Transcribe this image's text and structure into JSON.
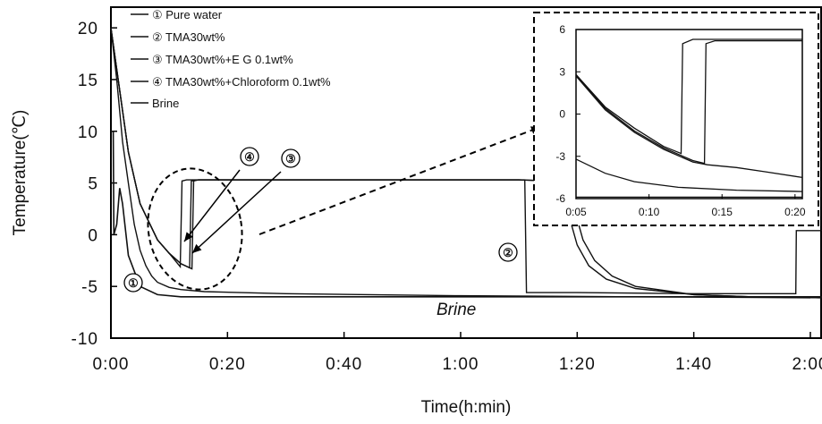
{
  "chart_data": [
    {
      "type": "line",
      "xlabel": "Time(h:min)",
      "ylabel": "Temperature(℃)",
      "xlim": [
        0,
        122
      ],
      "ylim": [
        -10,
        22
      ],
      "x_ticks": [
        0,
        20,
        40,
        60,
        80,
        100,
        120
      ],
      "x_tick_labels": [
        "0:00",
        "0:20",
        "0:40",
        "1:00",
        "1:20",
        "1:40",
        "2:00"
      ],
      "y_ticks": [
        -10,
        -5,
        0,
        5,
        10,
        15,
        20
      ],
      "y_tick_labels": [
        "-10",
        "-5",
        "0",
        "5",
        "10",
        "15",
        "20"
      ],
      "grid": false,
      "legend_position": "top-left",
      "series": [
        {
          "name": "① Pure water",
          "points": [
            [
              0,
              20
            ],
            [
              1,
              15
            ],
            [
              2,
              9
            ],
            [
              3,
              5
            ],
            [
              4,
              1
            ],
            [
              5,
              -1.5
            ],
            [
              6,
              -3
            ],
            [
              7,
              -4
            ],
            [
              8,
              -4.6
            ],
            [
              10,
              -5.1
            ],
            [
              12,
              -5.3
            ],
            [
              16,
              -5.5
            ],
            [
              30,
              -5.7
            ],
            [
              60,
              -5.9
            ],
            [
              90,
              -6.0
            ],
            [
              120,
              -6.1
            ]
          ]
        },
        {
          "name": "② TMA30wt%",
          "points": [
            [
              0,
              20
            ],
            [
              1,
              16
            ],
            [
              3,
              8
            ],
            [
              5,
              3
            ],
            [
              8,
              -0.5
            ],
            [
              10,
              -1.8
            ],
            [
              12,
              -2.8
            ],
            [
              13.9,
              -3.3
            ],
            [
              14.2,
              5.2
            ],
            [
              15,
              5.3
            ],
            [
              40,
              5.3
            ],
            [
              70,
              5.3
            ],
            [
              76,
              5.2
            ],
            [
              78,
              4.8
            ],
            [
              79,
              3.5
            ],
            [
              80,
              1.5
            ],
            [
              81,
              -0.5
            ],
            [
              83,
              -2.5
            ],
            [
              86,
              -4
            ],
            [
              90,
              -5
            ],
            [
              100,
              -5.8
            ],
            [
              110,
              -6
            ],
            [
              122,
              -6.1
            ]
          ]
        },
        {
          "name": "③ TMA30wt%+E G 0.1wt%",
          "points": [
            [
              0,
              20
            ],
            [
              1,
              16
            ],
            [
              3,
              8
            ],
            [
              5,
              3
            ],
            [
              8,
              -0.5
            ],
            [
              10,
              -1.8
            ],
            [
              12,
              -2.8
            ],
            [
              13.5,
              -3.2
            ],
            [
              13.8,
              5.2
            ],
            [
              15,
              5.3
            ],
            [
              40,
              5.3
            ],
            [
              70,
              5.3
            ],
            [
              75,
              5.2
            ],
            [
              77,
              4.6
            ],
            [
              78,
              3
            ],
            [
              79,
              1
            ],
            [
              80,
              -1
            ],
            [
              82,
              -3
            ],
            [
              85,
              -4.3
            ],
            [
              90,
              -5.2
            ],
            [
              100,
              -5.8
            ],
            [
              110,
              -6
            ],
            [
              122,
              -6.1
            ]
          ]
        },
        {
          "name": "④ TMA30wt%+Chloroform 0.1wt%",
          "points": [
            [
              0,
              20
            ],
            [
              1,
              16
            ],
            [
              3,
              8
            ],
            [
              5,
              3
            ],
            [
              8,
              -0.5
            ],
            [
              10,
              -1.8
            ],
            [
              11.9,
              -3.1
            ],
            [
              12.2,
              5.2
            ],
            [
              13,
              5.3
            ],
            [
              40,
              5.3
            ],
            [
              71,
              5.3
            ],
            [
              71.3,
              -5.6
            ],
            [
              72,
              -5.6
            ],
            [
              80,
              -5.6
            ],
            [
              100,
              -5.7
            ],
            [
              117.5,
              -5.7
            ],
            [
              117.6,
              0.4
            ],
            [
              122,
              0.4
            ]
          ]
        },
        {
          "name": "Brine",
          "points": [
            [
              0,
              10
            ],
            [
              0.4,
              10
            ],
            [
              0.5,
              0
            ],
            [
              1,
              1
            ],
            [
              1.5,
              4.5
            ],
            [
              2,
              3
            ],
            [
              3,
              -2
            ],
            [
              5,
              -5
            ],
            [
              8,
              -5.8
            ],
            [
              12,
              -6
            ],
            [
              60,
              -6
            ],
            [
              122,
              -6
            ]
          ]
        }
      ],
      "annotations": [
        "④",
        "③",
        "②",
        "①",
        "Brine"
      ]
    },
    {
      "type": "line",
      "note": "inset zoom",
      "xlim": [
        5,
        20.5
      ],
      "ylim": [
        -6,
        6
      ],
      "x_ticks": [
        5,
        10,
        15,
        20
      ],
      "x_tick_labels": [
        "0:05",
        "0:10",
        "0:15",
        "0:20"
      ],
      "y_ticks": [
        -6,
        -3,
        0,
        3,
        6
      ],
      "y_tick_labels": [
        "-6",
        "-3",
        "0",
        "3",
        "6"
      ],
      "series": [
        {
          "name": "④",
          "points": [
            [
              5,
              2.8
            ],
            [
              7,
              0.5
            ],
            [
              9,
              -1
            ],
            [
              11,
              -2.3
            ],
            [
              12.2,
              -2.8
            ],
            [
              12.3,
              5.0
            ],
            [
              13,
              5.3
            ],
            [
              20.5,
              5.3
            ]
          ]
        },
        {
          "name": "③",
          "points": [
            [
              5,
              2.8
            ],
            [
              7,
              0.4
            ],
            [
              9,
              -1.2
            ],
            [
              11,
              -2.4
            ],
            [
              13,
              -3.3
            ],
            [
              13.8,
              -3.5
            ],
            [
              13.9,
              5.0
            ],
            [
              14.5,
              5.2
            ],
            [
              20.5,
              5.2
            ]
          ]
        },
        {
          "name": "②",
          "points": [
            [
              5,
              2.7
            ],
            [
              7,
              0.3
            ],
            [
              9,
              -1.3
            ],
            [
              11,
              -2.5
            ],
            [
              13,
              -3.4
            ],
            [
              14,
              -3.6
            ],
            [
              16,
              -3.8
            ],
            [
              18,
              -4.1
            ],
            [
              20.5,
              -4.5
            ]
          ]
        },
        {
          "name": "①",
          "points": [
            [
              5,
              -3.2
            ],
            [
              7,
              -4.2
            ],
            [
              9,
              -4.8
            ],
            [
              12,
              -5.2
            ],
            [
              16,
              -5.4
            ],
            [
              20.5,
              -5.5
            ]
          ]
        },
        {
          "name": "Brine",
          "points": [
            [
              5,
              -5.9
            ],
            [
              20.5,
              -5.9
            ]
          ]
        }
      ]
    }
  ]
}
